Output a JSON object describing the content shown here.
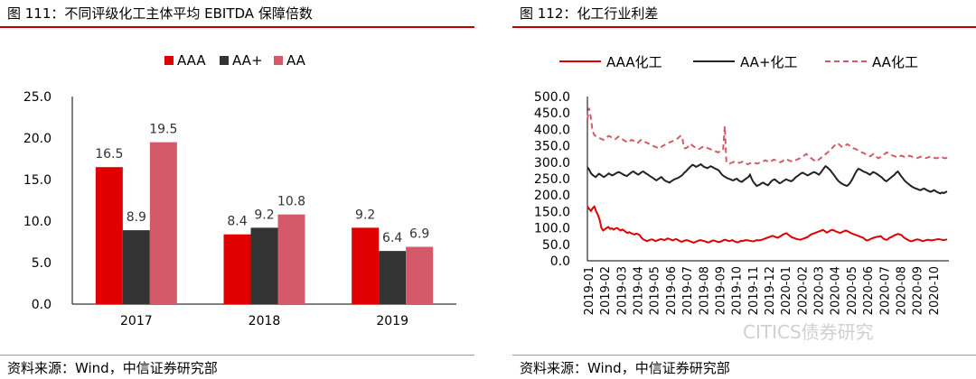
{
  "left": {
    "title": "图 111：不同评级化工主体平均 EBITDA 保障倍数",
    "source": "资料来源：Wind，中信证券研究部"
  },
  "right": {
    "title": "图 112：化工行业利差",
    "source": "资料来源：Wind，中信证券研究部"
  },
  "watermark": "CITICS债券研究",
  "colors": {
    "accent_red": "#c00000",
    "aaa": "#e00000",
    "aa_plus": "#333333",
    "aa": "#d45a6a"
  },
  "chart_data": [
    {
      "type": "bar",
      "categories": [
        "2017",
        "2018",
        "2019"
      ],
      "series": [
        {
          "name": "AAA",
          "values": [
            16.5,
            8.4,
            9.2
          ]
        },
        {
          "name": "AA+",
          "values": [
            8.9,
            9.2,
            6.4
          ]
        },
        {
          "name": "AA",
          "values": [
            19.5,
            10.8,
            6.9
          ]
        }
      ],
      "data_labels": [
        [
          "16.5",
          "8.4",
          "9.2"
        ],
        [
          "8.9",
          "9.2",
          "6.4"
        ],
        [
          "19.5",
          "10.8",
          "6.9"
        ]
      ],
      "ylim": [
        0,
        25
      ],
      "yticks": [
        "0.0",
        "5.0",
        "10.0",
        "15.0",
        "20.0",
        "25.0"
      ],
      "legend_position": "top-center",
      "grid": false
    },
    {
      "type": "line",
      "x_start": "2019-01",
      "x_end": "2020-11",
      "xticks": [
        "2019-01",
        "2019-02",
        "2019-03",
        "2019-04",
        "2019-05",
        "2019-06",
        "2019-07",
        "2019-08",
        "2019-09",
        "2019-10",
        "2019-11",
        "2019-12",
        "2020-01",
        "2020-02",
        "2020-03",
        "2020-04",
        "2020-05",
        "2020-06",
        "2020-07",
        "2020-08",
        "2020-09",
        "2020-10"
      ],
      "series": [
        {
          "name": "AAA化工",
          "style": "solid",
          "values": [
            165,
            158,
            152,
            160,
            165,
            150,
            140,
            125,
            100,
            92,
            96,
            100,
            103,
            97,
            99,
            95,
            98,
            100,
            96,
            92,
            95,
            92,
            88,
            85,
            87,
            84,
            82,
            80,
            83,
            81,
            78,
            70,
            65,
            63,
            60,
            62,
            64,
            65,
            63,
            60,
            62,
            64,
            66,
            65,
            63,
            65,
            68,
            66,
            64,
            62,
            65,
            66,
            63,
            60,
            58,
            60,
            62,
            63,
            61,
            59,
            57,
            55,
            58,
            60,
            62,
            63,
            61,
            60,
            58,
            56,
            57,
            60,
            62,
            61,
            59,
            57,
            58,
            60,
            63,
            64,
            62,
            60,
            61,
            63,
            60,
            58,
            56,
            58,
            61,
            60,
            62,
            63,
            62,
            61,
            60,
            59,
            61,
            63,
            62,
            63,
            64,
            66,
            68,
            70,
            72,
            74,
            76,
            74,
            72,
            70,
            73,
            76,
            80,
            82,
            84,
            80,
            76,
            72,
            70,
            68,
            66,
            65,
            64,
            66,
            68,
            70,
            72,
            76,
            80,
            82,
            84,
            86,
            88,
            90,
            92,
            94,
            90,
            86,
            88,
            92,
            94,
            93,
            90,
            88,
            86,
            85,
            88,
            90,
            92,
            90,
            87,
            84,
            82,
            80,
            78,
            76,
            74,
            72,
            70,
            65,
            62,
            63,
            66,
            68,
            70,
            72,
            73,
            74,
            75,
            70,
            66,
            64,
            65,
            70,
            72,
            75,
            78,
            80,
            82,
            80,
            78,
            72,
            68,
            65,
            62,
            60,
            60,
            62,
            64,
            65,
            64,
            62,
            60,
            61,
            63,
            64,
            63,
            62,
            63,
            64,
            65,
            66,
            65,
            64,
            63,
            64,
            65
          ]
        },
        {
          "name": "AA+化工",
          "style": "solid",
          "values": [
            285,
            278,
            268,
            262,
            258,
            255,
            260,
            265,
            262,
            258,
            255,
            258,
            262,
            266,
            263,
            260,
            262,
            265,
            268,
            270,
            268,
            265,
            262,
            260,
            258,
            262,
            266,
            270,
            272,
            268,
            265,
            262,
            266,
            270,
            272,
            268,
            265,
            262,
            258,
            255,
            252,
            248,
            245,
            248,
            252,
            255,
            250,
            245,
            242,
            240,
            238,
            242,
            245,
            248,
            250,
            252,
            255,
            258,
            262,
            268,
            272,
            278,
            283,
            288,
            292,
            290,
            286,
            288,
            291,
            294,
            290,
            286,
            284,
            282,
            285,
            288,
            286,
            283,
            280,
            278,
            275,
            268,
            262,
            258,
            255,
            252,
            250,
            248,
            246,
            245,
            248,
            250,
            245,
            242,
            240,
            244,
            248,
            252,
            255,
            262,
            250,
            240,
            234,
            228,
            230,
            232,
            236,
            238,
            235,
            232,
            230,
            236,
            242,
            246,
            248,
            244,
            240,
            236,
            238,
            242,
            245,
            248,
            246,
            244,
            242,
            245,
            250,
            255,
            258,
            262,
            266,
            268,
            266,
            263,
            260,
            262,
            265,
            268,
            270,
            268,
            265,
            262,
            268,
            275,
            282,
            288,
            285,
            280,
            275,
            268,
            262,
            255,
            248,
            242,
            238,
            235,
            232,
            230,
            228,
            232,
            238,
            246,
            255,
            265,
            274,
            280,
            278,
            275,
            272,
            270,
            268,
            265,
            262,
            266,
            270,
            268,
            265,
            262,
            258,
            255,
            250,
            245,
            242,
            246,
            250,
            254,
            258,
            262,
            268,
            272,
            265,
            258,
            252,
            245,
            240,
            236,
            232,
            228,
            225,
            222,
            220,
            218,
            216,
            215,
            218,
            220,
            217,
            214,
            212,
            210,
            212,
            215,
            212,
            209,
            207,
            205,
            208,
            206,
            209,
            211
          ]
        },
        {
          "name": "AA化工",
          "style": "dashed",
          "values": [
            430,
            465,
            440,
            400,
            385,
            380,
            378,
            375,
            372,
            370,
            368,
            372,
            376,
            380,
            378,
            375,
            372,
            370,
            374,
            378,
            376,
            372,
            368,
            365,
            362,
            360,
            364,
            368,
            366,
            362,
            358,
            360,
            365,
            368,
            366,
            363,
            360,
            358,
            355,
            352,
            350,
            348,
            346,
            344,
            342,
            345,
            350,
            352,
            355,
            358,
            360,
            362,
            364,
            366,
            368,
            372,
            376,
            380,
            378,
            345,
            342,
            345,
            350,
            356,
            352,
            348,
            345,
            343,
            340,
            342,
            345,
            348,
            346,
            344,
            342,
            340,
            338,
            336,
            334,
            332,
            330,
            333,
            336,
            338,
            410,
            300,
            298,
            296,
            298,
            300,
            302,
            301,
            299,
            298,
            300,
            302,
            300,
            297,
            294,
            296,
            298,
            300,
            299,
            297,
            296,
            298,
            300,
            302,
            304,
            306,
            303,
            300,
            302,
            305,
            308,
            306,
            304,
            302,
            300,
            302,
            306,
            310,
            308,
            306,
            304,
            303,
            302,
            305,
            308,
            310,
            312,
            315,
            318,
            322,
            325,
            320,
            316,
            312,
            308,
            305,
            302,
            306,
            310,
            314,
            318,
            322,
            326,
            330,
            335,
            340,
            345,
            350,
            355,
            358,
            354,
            350,
            346,
            348,
            352,
            355,
            352,
            348,
            345,
            342,
            340,
            338,
            335,
            332,
            330,
            328,
            325,
            322,
            320,
            318,
            322,
            325,
            320,
            316,
            312,
            315,
            318,
            322,
            326,
            330,
            328,
            325,
            322,
            320,
            318,
            316,
            315,
            318,
            320,
            318,
            316,
            315,
            317,
            320,
            318,
            316,
            315,
            314,
            313,
            315,
            317,
            316,
            315,
            313,
            314,
            316,
            318,
            316,
            314,
            312,
            313,
            315,
            317,
            315,
            313,
            312,
            314
          ]
        }
      ],
      "ylim": [
        0,
        500
      ],
      "yticks": [
        "0.0",
        "50.0",
        "100.0",
        "150.0",
        "200.0",
        "250.0",
        "300.0",
        "350.0",
        "400.0",
        "450.0",
        "500.0"
      ],
      "legend_position": "top",
      "grid": false
    }
  ]
}
